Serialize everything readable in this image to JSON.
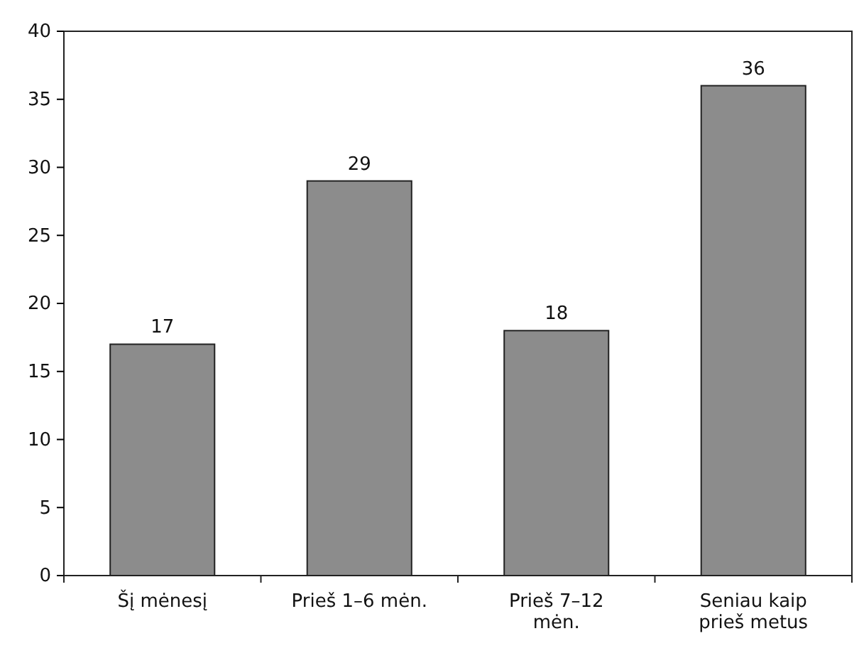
{
  "chart_data": {
    "type": "bar",
    "categories": [
      "Šį mėnesį",
      "Prieš 1–6 mėn.",
      "Prieš 7–12 mėn.",
      "Seniau kaip prieš metus"
    ],
    "values": [
      17,
      29,
      18,
      36
    ],
    "color": "#8c8c8c",
    "ylim": [
      0,
      40
    ],
    "yticks": [
      0,
      5,
      10,
      15,
      20,
      25,
      30,
      35,
      40
    ],
    "data_labels": true
  }
}
